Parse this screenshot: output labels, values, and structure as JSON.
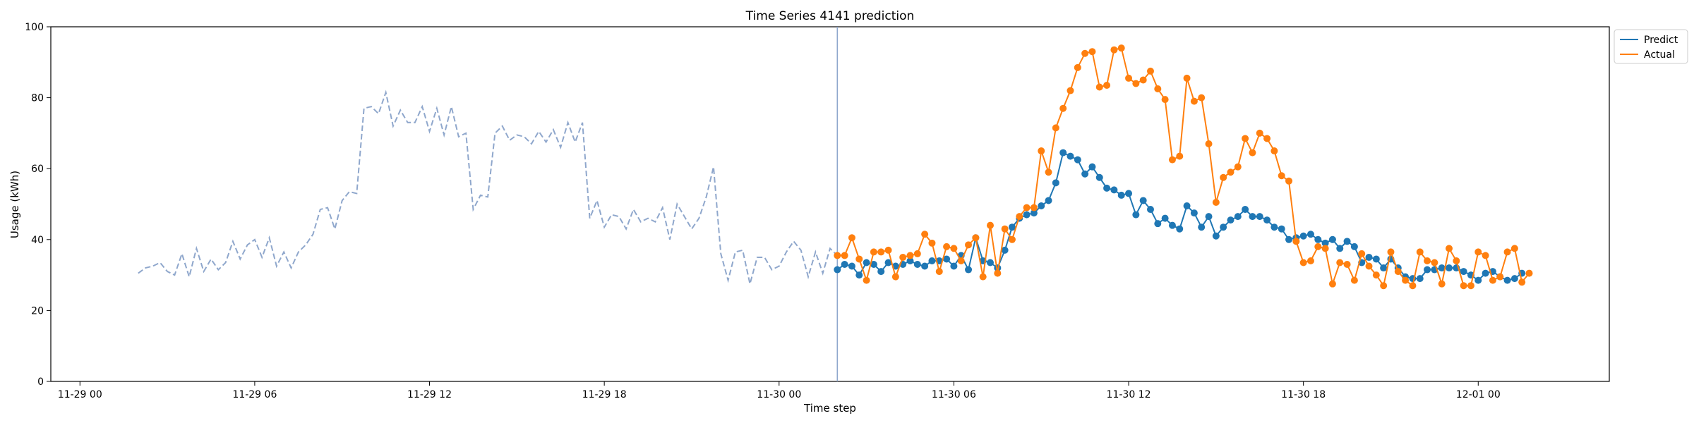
{
  "chart_data": {
    "type": "line",
    "title": "Time Series 4141 prediction",
    "xlabel": "Time step",
    "ylabel": "Usage (kWh)",
    "ylim": [
      0,
      100
    ],
    "yticks": [
      0,
      20,
      40,
      60,
      80,
      100
    ],
    "xticks": [
      "11-29 00",
      "11-29 06",
      "11-29 12",
      "11-29 18",
      "11-30 00",
      "11-30 06",
      "11-30 12",
      "11-30 18",
      "12-01 00"
    ],
    "xlim_hours": [
      -1.0,
      52.5
    ],
    "grid": false,
    "legend_position": "top-right (outside)",
    "forecast_start_hour": 26.0,
    "colors": {
      "history": "#8fa7cc",
      "predict": "#1f77b4",
      "actual": "#ff7f0e",
      "vline": "#8fa7cc"
    },
    "history": {
      "name": "",
      "style": "dashed",
      "start_hour": 2.0,
      "step_hours": 0.25,
      "values": [
        30.5,
        32.0,
        32.5,
        33.5,
        31.0,
        30.0,
        36.0,
        29.5,
        37.5,
        31.0,
        34.5,
        31.5,
        33.5,
        39.5,
        34.5,
        38.5,
        40.0,
        35.0,
        40.5,
        32.5,
        36.5,
        32.0,
        36.5,
        38.5,
        41.5,
        48.5,
        49.0,
        43.0,
        51.0,
        53.5,
        53.0,
        77.0,
        77.5,
        75.5,
        81.5,
        72.0,
        76.5,
        73.0,
        73.0,
        77.5,
        70.5,
        77.0,
        69.5,
        77.5,
        69.0,
        70.0,
        48.5,
        52.5,
        52.0,
        70.0,
        72.0,
        68.0,
        69.5,
        69.0,
        67.0,
        70.5,
        67.5,
        71.0,
        66.0,
        73.0,
        67.5,
        73.0,
        46.0,
        51.0,
        43.5,
        47.0,
        46.5,
        43.0,
        48.5,
        45.0,
        46.0,
        45.0,
        49.0,
        40.0,
        50.0,
        46.5,
        43.0,
        46.0,
        52.0,
        60.5,
        36.0,
        28.5,
        36.5,
        37.0,
        27.5,
        35.0,
        35.0,
        31.5,
        32.5,
        36.5,
        39.5,
        37.0,
        29.5,
        36.5,
        30.5,
        37.5,
        35.5
      ]
    },
    "series": [
      {
        "name": "Predict",
        "start_hour": 26.0,
        "step_hours": 0.25,
        "values": [
          31.5,
          33.0,
          32.5,
          30.0,
          33.5,
          33.0,
          31.0,
          33.5,
          32.5,
          33.0,
          34.0,
          33.0,
          32.5,
          34.0,
          34.0,
          34.5,
          32.5,
          35.5,
          31.5,
          40.5,
          34.0,
          33.5,
          32.0,
          37.0,
          43.5,
          46.0,
          47.0,
          47.5,
          49.5,
          51.0,
          56.0,
          64.5,
          63.5,
          62.5,
          58.5,
          60.5,
          57.5,
          54.5,
          54.0,
          52.5,
          53.0,
          47.0,
          51.0,
          48.5,
          44.5,
          46.0,
          44.0,
          43.0,
          49.5,
          47.5,
          43.5,
          46.5,
          41.0,
          43.5,
          45.5,
          46.5,
          48.5,
          46.5,
          46.5,
          45.5,
          43.5,
          43.0,
          40.0,
          40.5,
          41.0,
          41.5,
          40.0,
          39.0,
          40.0,
          37.5,
          39.5,
          38.0,
          33.5,
          35.0,
          34.5,
          32.0,
          34.5,
          32.0,
          29.5,
          29.0,
          29.0,
          31.5,
          31.5,
          32.0,
          32.0,
          32.0,
          31.0,
          30.0,
          28.5,
          30.5,
          31.0,
          29.5,
          28.5,
          29.0,
          30.5
        ]
      },
      {
        "name": "Actual",
        "start_hour": 26.0,
        "step_hours": 0.25,
        "values": [
          35.5,
          35.5,
          40.5,
          34.5,
          28.5,
          36.5,
          36.5,
          37.0,
          29.5,
          35.0,
          35.5,
          36.0,
          41.5,
          39.0,
          31.0,
          38.0,
          37.5,
          34.0,
          38.5,
          40.5,
          29.5,
          44.0,
          30.5,
          43.0,
          40.0,
          46.5,
          49.0,
          49.0,
          65.0,
          59.0,
          71.5,
          77.0,
          82.0,
          88.5,
          92.5,
          93.0,
          83.0,
          83.5,
          93.5,
          94.0,
          85.5,
          84.0,
          85.0,
          87.5,
          82.5,
          79.5,
          62.5,
          63.5,
          85.5,
          79.0,
          80.0,
          67.0,
          50.5,
          57.5,
          59.0,
          60.5,
          68.5,
          64.5,
          70.0,
          68.5,
          65.0,
          58.0,
          56.5,
          39.5,
          33.5,
          34.0,
          38.0,
          37.5,
          27.5,
          33.5,
          33.0,
          28.5,
          36.0,
          32.5,
          30.0,
          27.0,
          36.5,
          31.0,
          28.5,
          27.0,
          36.5,
          34.0,
          33.5,
          27.5,
          37.5,
          34.0,
          27.0,
          27.0,
          36.5,
          35.5,
          28.5,
          29.5,
          36.5,
          37.5,
          28.0,
          30.5
        ]
      }
    ]
  }
}
